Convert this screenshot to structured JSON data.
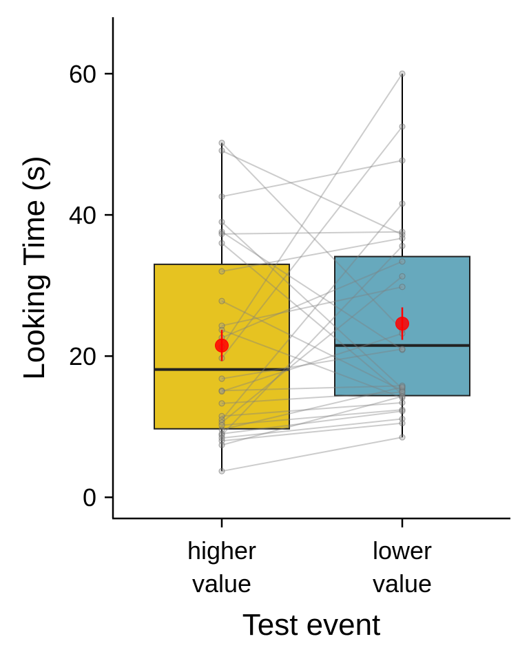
{
  "chart_data": {
    "type": "box",
    "xlabel": "Test event",
    "ylabel": "Looking Time (s)",
    "ylim": [
      -3,
      68
    ],
    "yticks": [
      0,
      20,
      40,
      60
    ],
    "grid": false,
    "categories": [
      {
        "line1": "higher",
        "line2": "value"
      },
      {
        "line1": "lower",
        "line2": "value"
      }
    ],
    "boxes": [
      {
        "q1": 9.7,
        "median": 18.1,
        "q3": 33.0,
        "whisker_low": 3.7,
        "whisker_high": 50.2,
        "fill": "#E6C321"
      },
      {
        "q1": 14.4,
        "median": 21.5,
        "q3": 34.1,
        "whisker_low": 8.5,
        "whisker_high": 60.0,
        "fill": "#67A9BD"
      }
    ],
    "means": [
      {
        "mean": 21.5,
        "error_low": 19.3,
        "error_high": 23.7
      },
      {
        "mean": 24.6,
        "error_low": 22.3,
        "error_high": 26.9
      }
    ],
    "paired_lines": [
      [
        50.2,
        23.7
      ],
      [
        49.1,
        37.2
      ],
      [
        42.6,
        47.7
      ],
      [
        39.0,
        15.4
      ],
      [
        37.6,
        20.9
      ],
      [
        37.3,
        37.6
      ],
      [
        36.0,
        14.6
      ],
      [
        32.0,
        36.7
      ],
      [
        27.8,
        15.1
      ],
      [
        24.3,
        29.8
      ],
      [
        23.7,
        14.1
      ],
      [
        22.6,
        33.4
      ],
      [
        21.3,
        60.0
      ],
      [
        19.7,
        52.5
      ],
      [
        16.8,
        21.0
      ],
      [
        15.1,
        15.8
      ],
      [
        15.0,
        23.2
      ],
      [
        13.3,
        14.9
      ],
      [
        11.5,
        13.4
      ],
      [
        11.0,
        41.6
      ],
      [
        10.6,
        31.3
      ],
      [
        10.2,
        12.4
      ],
      [
        9.6,
        15.6
      ],
      [
        9.0,
        12.2
      ],
      [
        8.8,
        35.6
      ],
      [
        8.4,
        11.1
      ],
      [
        8.0,
        10.5
      ],
      [
        7.4,
        14.3
      ],
      [
        3.7,
        8.5
      ]
    ],
    "colors": {
      "mean_point": "#FF0000",
      "line": "#000000",
      "paired_line": "#7F7F7F"
    }
  }
}
